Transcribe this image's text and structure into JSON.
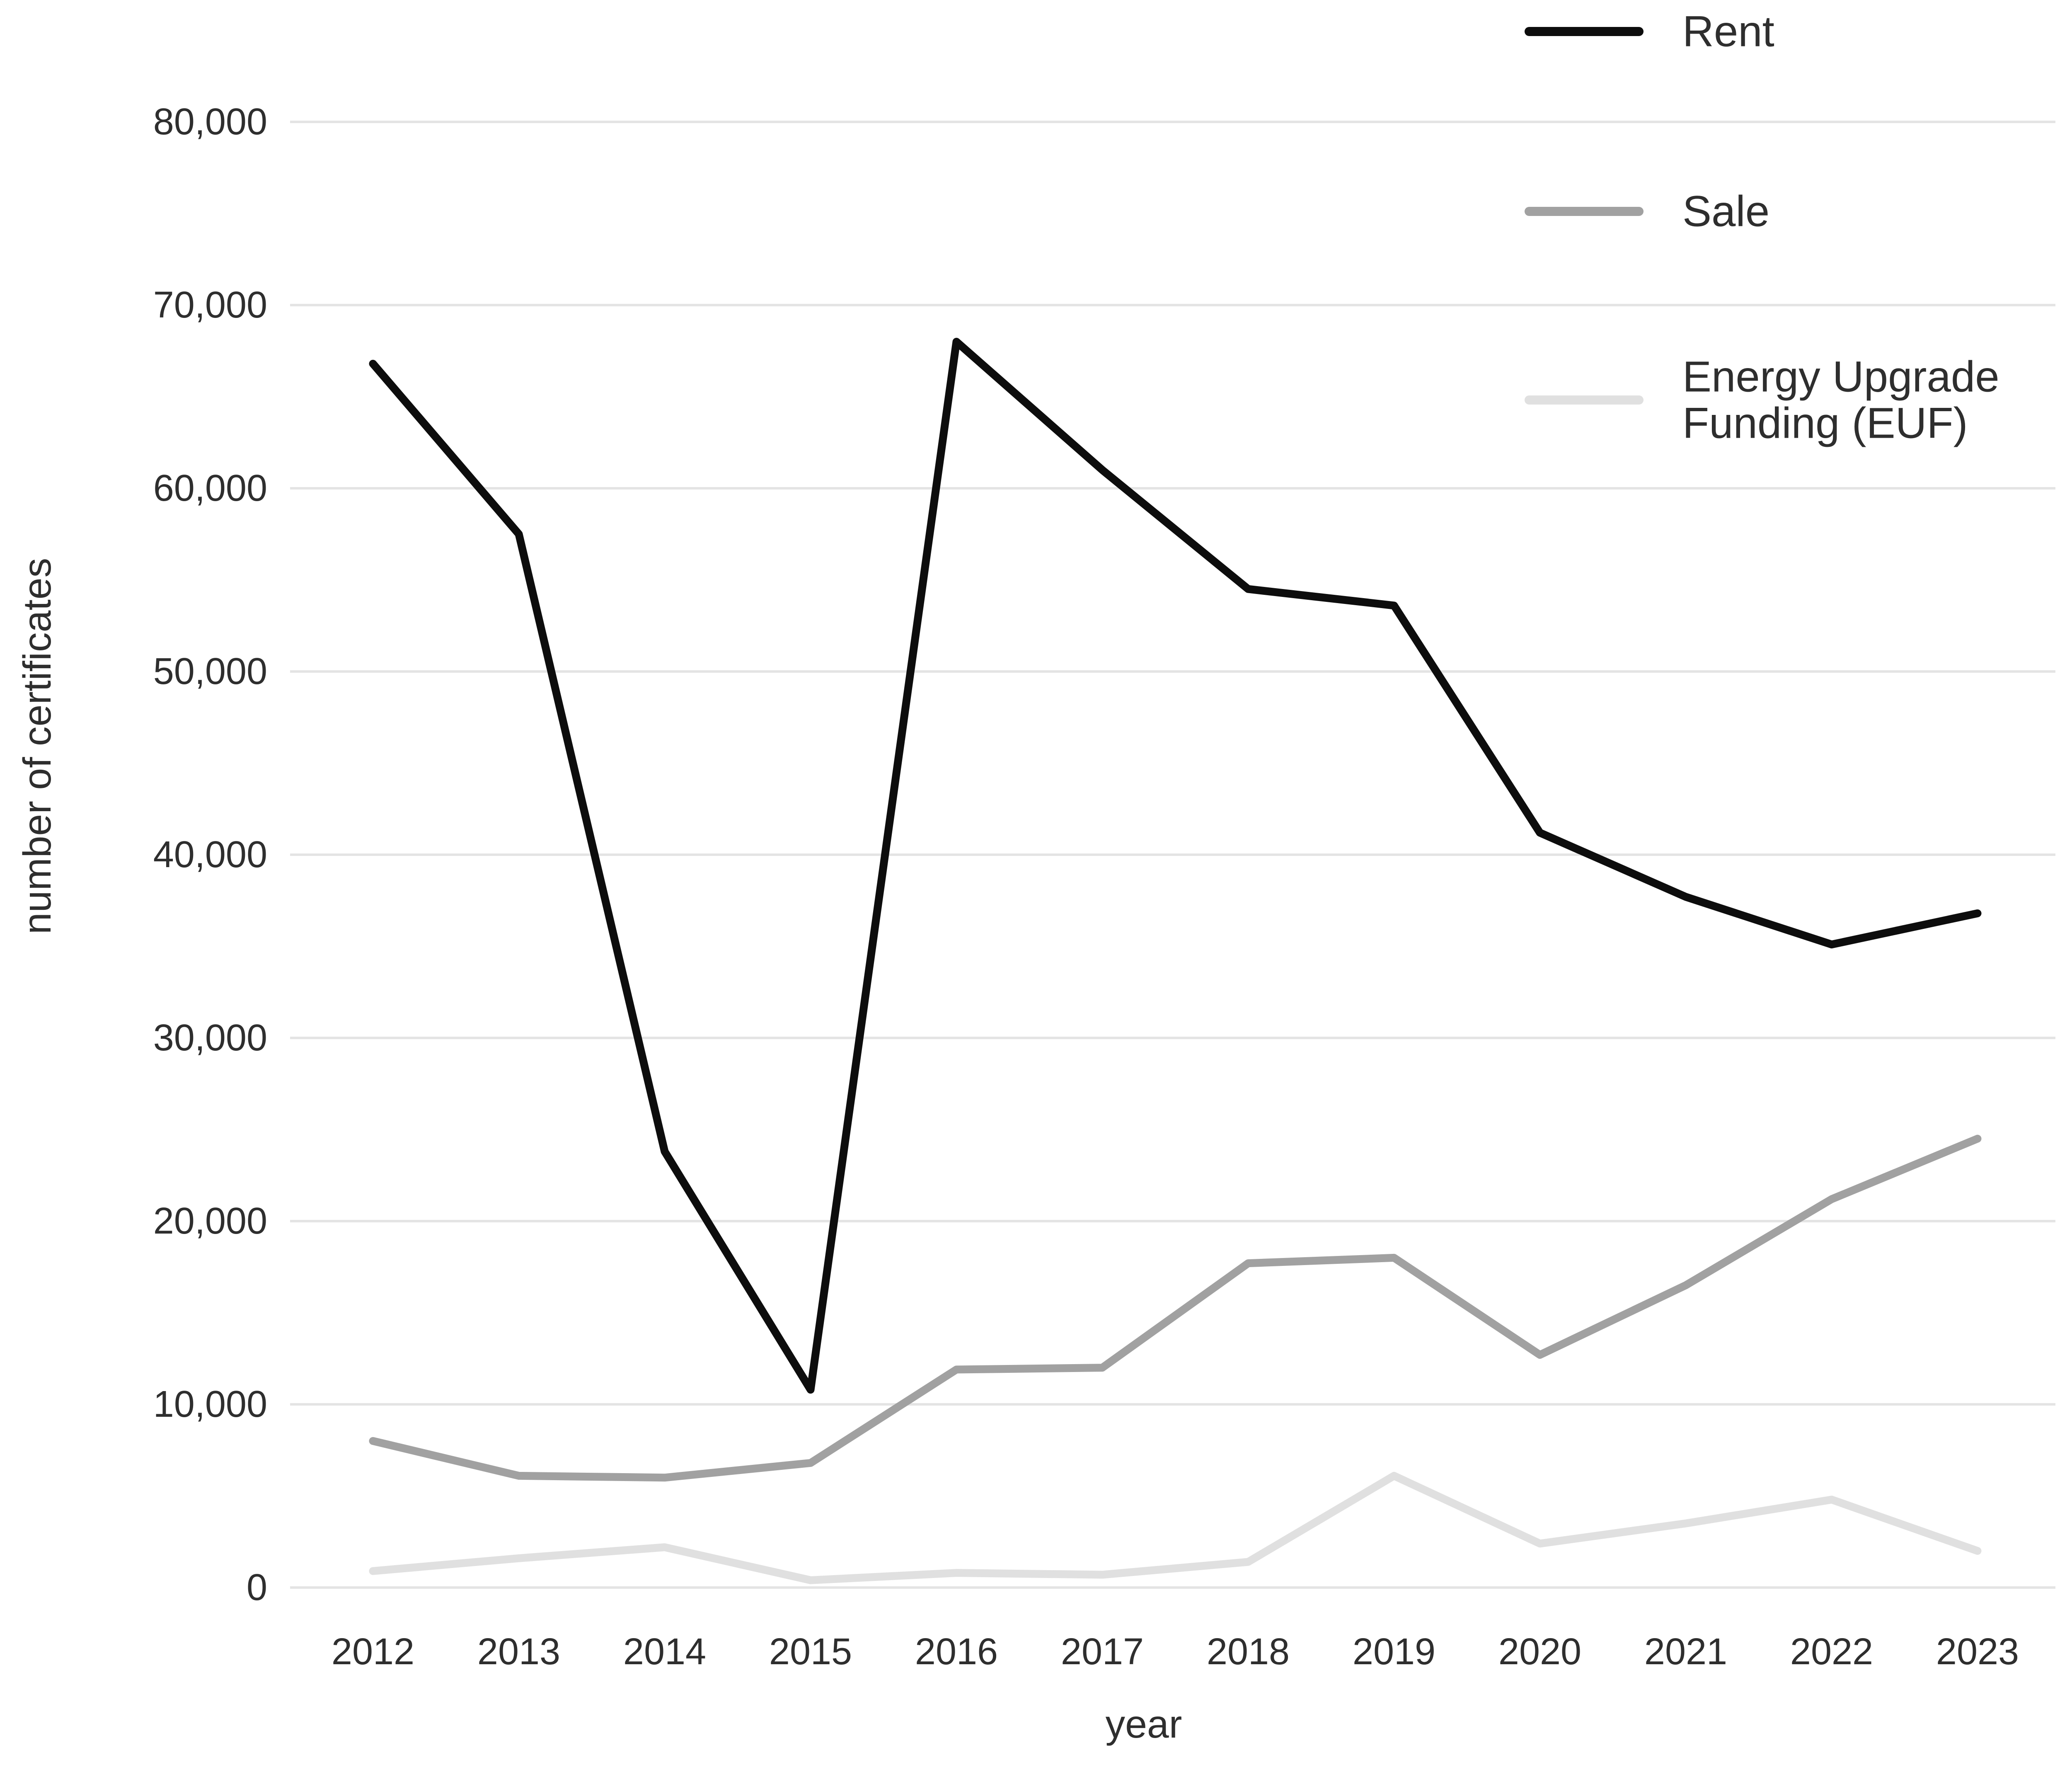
{
  "chart_data": {
    "type": "line",
    "title": "",
    "xlabel": "year",
    "ylabel": "number of certificates",
    "categories": [
      "2012",
      "2013",
      "2014",
      "2015",
      "2016",
      "2017",
      "2018",
      "2019",
      "2020",
      "2021",
      "2022",
      "2023"
    ],
    "series": [
      {
        "id": "rent",
        "name": "Rent",
        "label_lines": [
          "Rent"
        ],
        "color": "#0d0d0d",
        "values": [
          66800,
          57500,
          23800,
          10800,
          68000,
          61000,
          54500,
          53600,
          41200,
          37700,
          35100,
          36800
        ]
      },
      {
        "id": "sale",
        "name": "Sale",
        "label_lines": [
          "Sale"
        ],
        "color": "#a1a1a1",
        "values": [
          8000,
          6100,
          6000,
          6800,
          11900,
          12000,
          17700,
          18000,
          12700,
          16500,
          21200,
          24500
        ]
      },
      {
        "id": "euf",
        "name": "Energy Upgrade Funding (EUF)",
        "label_lines": [
          "Energy Upgrade",
          "Funding (EUF)"
        ],
        "color": "#e0e0e0",
        "values": [
          900,
          1600,
          2200,
          400,
          800,
          700,
          1400,
          6100,
          2400,
          3500,
          4800,
          2000
        ]
      }
    ],
    "y_ticks": [
      0,
      10000,
      20000,
      30000,
      40000,
      50000,
      60000,
      70000,
      80000
    ],
    "y_tick_labels": [
      "0",
      "10,000",
      "20,000",
      "30,000",
      "40,000",
      "50,000",
      "60,000",
      "70,000",
      "80,000"
    ],
    "ylim": [
      0,
      80000
    ],
    "grid": "horizontal",
    "legend_position": "top-right",
    "background": "#ffffff",
    "gridline_color": "#e4e4e4",
    "text_color": "#2e2e2e"
  }
}
